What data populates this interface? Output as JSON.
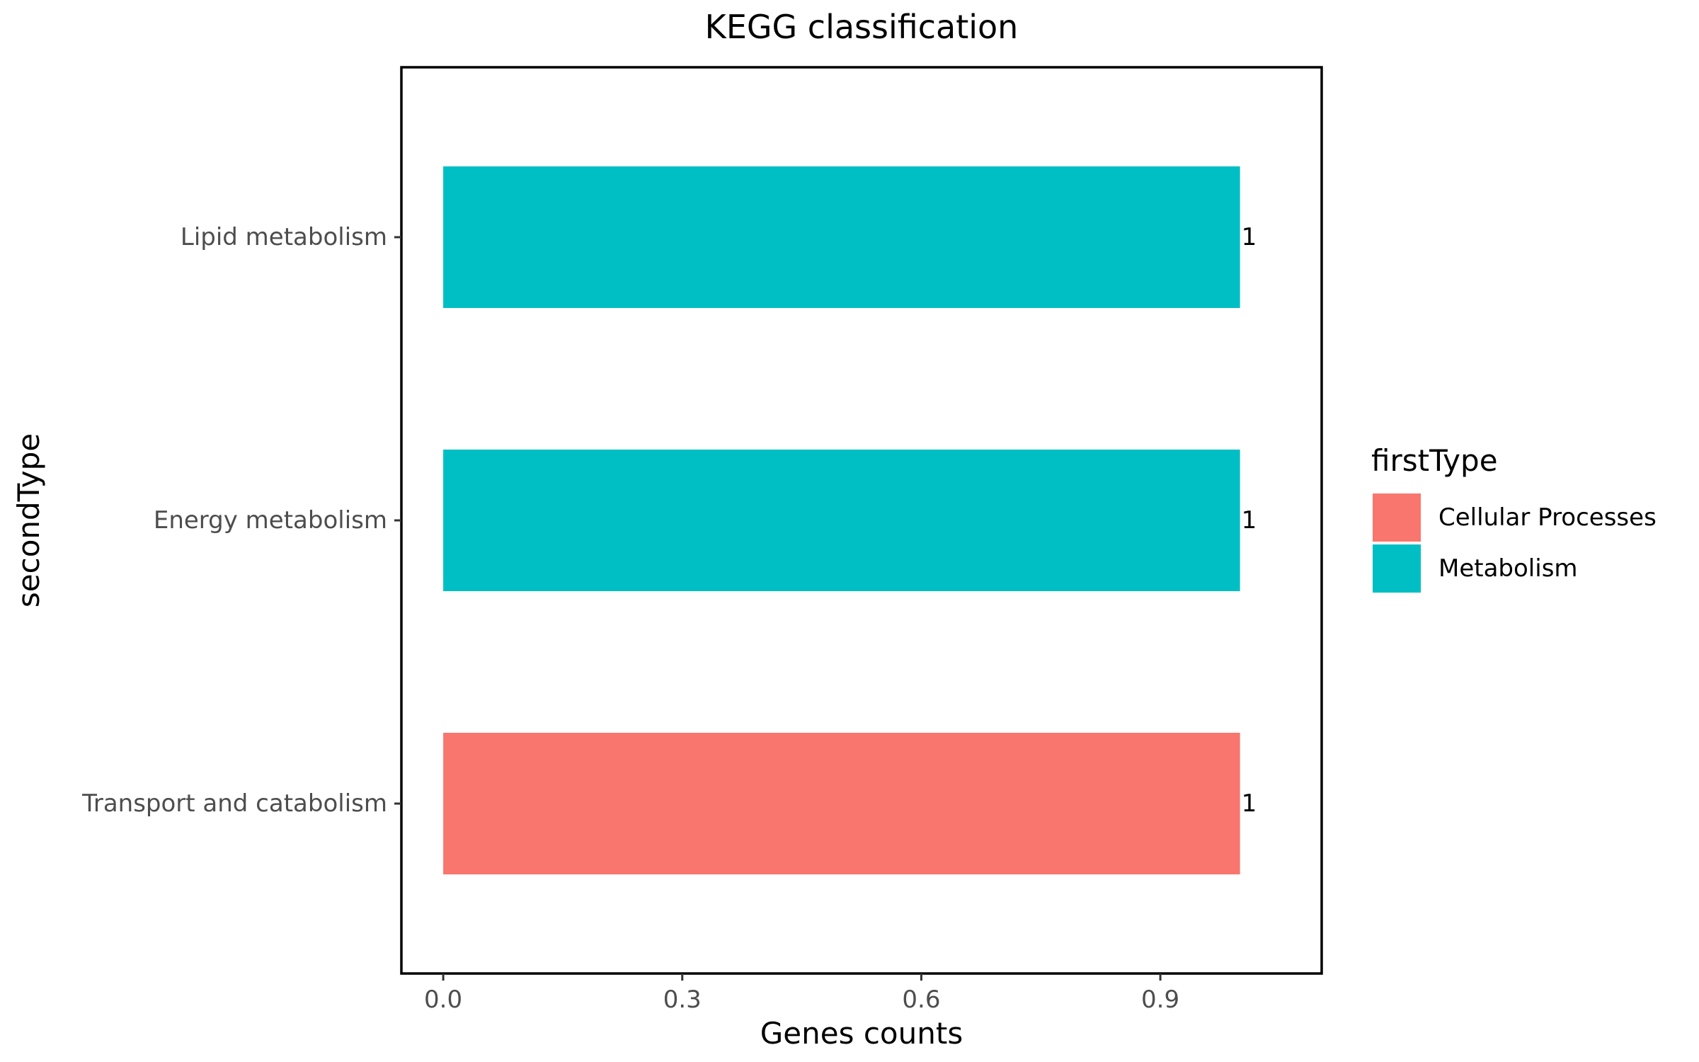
{
  "chart_data": {
    "type": "bar",
    "orientation": "horizontal",
    "title": "KEGG classification",
    "xlabel": "Genes counts",
    "ylabel": "secondType",
    "categories": [
      "Lipid metabolism",
      "Energy metabolism",
      "Transport and catabolism"
    ],
    "values": [
      1,
      1,
      1
    ],
    "bar_groups": [
      "Metabolism",
      "Metabolism",
      "Cellular Processes"
    ],
    "data_labels": [
      "1",
      "1",
      "1"
    ],
    "xlim": [
      -0.0525,
      1.1025
    ],
    "xticks": [
      0.0,
      0.3,
      0.6,
      0.9
    ],
    "xtick_labels": [
      "0.0",
      "0.3",
      "0.6",
      "0.9"
    ],
    "grid": false,
    "legend": {
      "title": "firstType",
      "placement": "right",
      "entries": [
        {
          "label": "Cellular Processes",
          "color": "#F8766D"
        },
        {
          "label": "Metabolism",
          "color": "#00BFC4"
        }
      ]
    }
  }
}
